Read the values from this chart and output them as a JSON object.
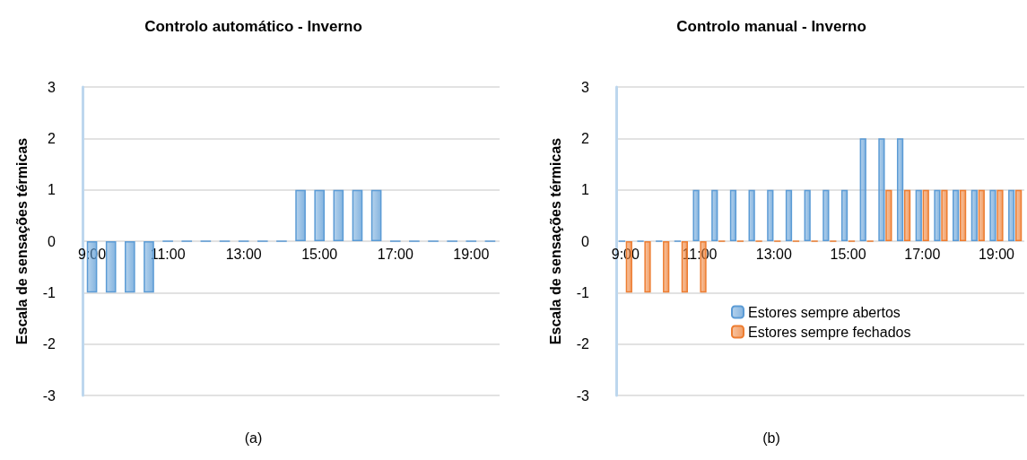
{
  "chart_data": [
    {
      "type": "bar",
      "title": "Controlo automático - Inverno",
      "ylabel": "Escala de sensações térmicas",
      "annotations": [
        "(a)"
      ],
      "categories": [
        "9:00",
        null,
        null,
        null,
        "11:00",
        null,
        null,
        null,
        "13:00",
        null,
        null,
        null,
        "15:00",
        null,
        null,
        null,
        "17:00",
        null,
        null,
        null,
        "19:00",
        null
      ],
      "series": [
        {
          "color": "#5b9bd5",
          "values": [
            -1,
            -1,
            -1,
            -1,
            0,
            0,
            0,
            0,
            0,
            0,
            0,
            1,
            1,
            1,
            1,
            1,
            0,
            0,
            0,
            0,
            0,
            0
          ]
        }
      ],
      "ylim": [
        -3,
        3
      ],
      "yticks": [
        -3,
        -2,
        -1,
        0,
        1,
        2,
        3
      ],
      "grid": "y"
    },
    {
      "type": "bar",
      "title": "Controlo manual - Inverno",
      "ylabel": "Escala de sensações térmicas",
      "annotations": [
        "(b)"
      ],
      "categories": [
        "9:00",
        null,
        null,
        null,
        "11:00",
        null,
        null,
        null,
        "13:00",
        null,
        null,
        null,
        "15:00",
        null,
        null,
        null,
        "17:00",
        null,
        null,
        null,
        "19:00",
        null
      ],
      "series": [
        {
          "name": "Estores sempre abertos",
          "color": "#5b9bd5",
          "values": [
            0,
            0,
            0,
            0,
            1,
            1,
            1,
            1,
            1,
            1,
            1,
            1,
            1,
            2,
            2,
            2,
            1,
            1,
            1,
            1,
            1,
            1
          ]
        },
        {
          "name": "Estores sempre fechados",
          "color": "#ed7d31",
          "values": [
            -1,
            -1,
            -1,
            -1,
            -1,
            0,
            0,
            0,
            0,
            0,
            0,
            0,
            0,
            0,
            1,
            1,
            1,
            1,
            1,
            1,
            1,
            1
          ]
        }
      ],
      "ylim": [
        -3,
        3
      ],
      "yticks": [
        -3,
        -2,
        -1,
        0,
        1,
        2,
        3
      ],
      "grid": "y",
      "legend": "bottom right"
    }
  ]
}
